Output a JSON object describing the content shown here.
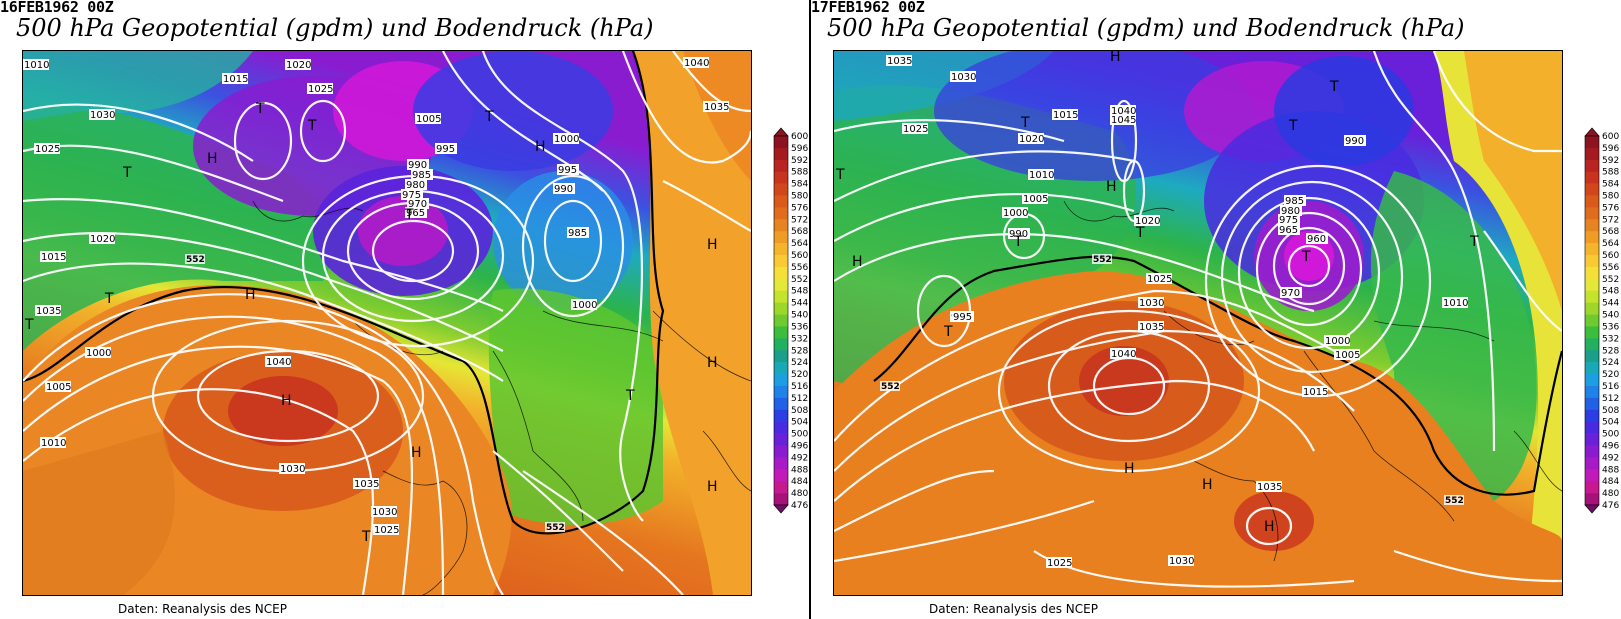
{
  "panels": [
    {
      "date": "16FEB1962 00Z",
      "title": "500 hPa Geopotential (gpdm) und Bodendruck (hPa)",
      "source": "Daten: Reanalysis des NCEP",
      "isobar_labels": [
        "1010",
        "1020",
        "1025",
        "1015",
        "1030",
        "1005",
        "1000",
        "995",
        "990",
        "985",
        "980",
        "975",
        "970",
        "965",
        "1035",
        "1040",
        "1030",
        "1025",
        "1020",
        "1015",
        "1010",
        "1005",
        "1000",
        "1035",
        "1030",
        "1025",
        "1000",
        "995",
        "990",
        "985",
        "1040",
        "1035"
      ],
      "pressure_centers": [
        "T",
        "T",
        "T",
        "T",
        "H",
        "H",
        "T",
        "T",
        "H",
        "T",
        "H",
        "T",
        "T",
        "H",
        "H",
        "H",
        "H"
      ],
      "contour_label_552": "552"
    },
    {
      "date": "17FEB1962 00Z",
      "title": "500 hPa Geopotential (gpdm) und Bodendruck (hPa)",
      "source": "Daten: Reanalysis des NCEP",
      "isobar_labels": [
        "1035",
        "1030",
        "1025",
        "1020",
        "1015",
        "1010",
        "1040",
        "1045",
        "1005",
        "1000",
        "995",
        "990",
        "985",
        "980",
        "975",
        "970",
        "965",
        "960",
        "1025",
        "1030",
        "1035",
        "1040",
        "1015",
        "1020",
        "1010",
        "1005",
        "1000",
        "995",
        "990",
        "1035",
        "1030",
        "1025"
      ],
      "pressure_centers": [
        "H",
        "T",
        "T",
        "T",
        "T",
        "T",
        "T",
        "H",
        "H",
        "T",
        "T",
        "H",
        "H",
        "H",
        "T"
      ],
      "contour_label_552": "552"
    }
  ],
  "colorbar": {
    "ticks": [
      "600",
      "596",
      "592",
      "588",
      "584",
      "580",
      "576",
      "572",
      "568",
      "564",
      "560",
      "556",
      "552",
      "548",
      "544",
      "540",
      "536",
      "532",
      "528",
      "524",
      "520",
      "516",
      "512",
      "508",
      "504",
      "500",
      "496",
      "492",
      "488",
      "484",
      "480",
      "476"
    ],
    "colors": [
      "#8c1320",
      "#a31a20",
      "#b92321",
      "#c8321e",
      "#d2461c",
      "#da5a1c",
      "#e06d1e",
      "#e78422",
      "#ee9c26",
      "#f4b42c",
      "#f8ca33",
      "#f6df38",
      "#e4e838",
      "#c4e32c",
      "#9ed629",
      "#6fca2f",
      "#3cbd3c",
      "#21b05f",
      "#1a9f8a",
      "#18a8b8",
      "#1c9ee0",
      "#1e82e8",
      "#2260e6",
      "#2c3ee2",
      "#4a2ae0",
      "#6a1fd8",
      "#8a1cd0",
      "#a81ac6",
      "#c21ab8",
      "#c81890",
      "#a6127a",
      "#6e0e64"
    ]
  }
}
